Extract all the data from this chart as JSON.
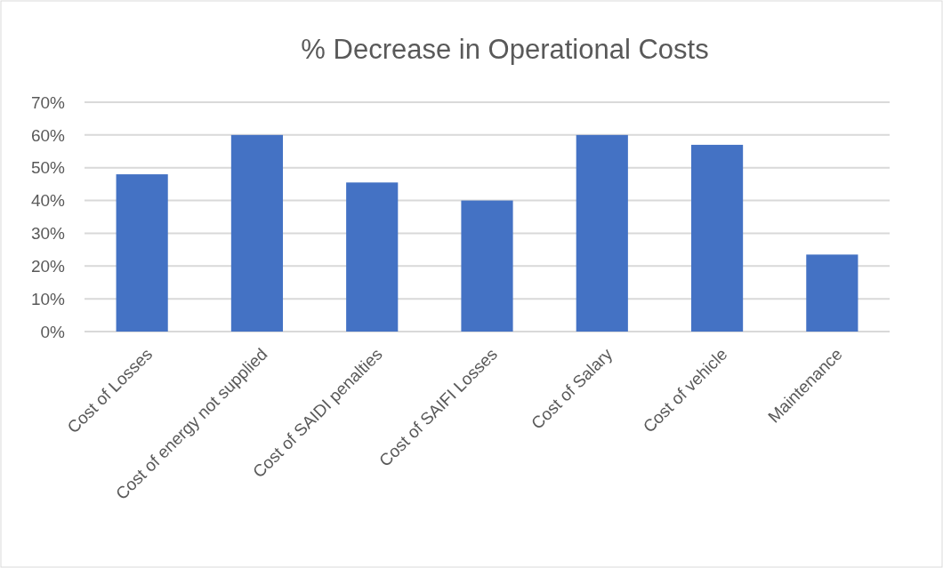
{
  "chart_data": {
    "type": "bar",
    "title": "% Decrease in Operational Costs",
    "categories": [
      "Cost of Losses",
      "Cost of energy not supplied",
      "Cost of SAIDI penalties",
      "Cost of SAIFI Losses",
      "Cost of Salary",
      "Cost of vehicle",
      "Maintenance"
    ],
    "values": [
      48,
      60,
      45.5,
      40,
      60,
      57,
      23.5
    ],
    "color": "#4472c4",
    "ylim": [
      0,
      70
    ],
    "yticks": [
      {
        "value": 0,
        "label": "0%"
      },
      {
        "value": 10,
        "label": "10%"
      },
      {
        "value": 20,
        "label": "20%"
      },
      {
        "value": 30,
        "label": "30%"
      },
      {
        "value": 40,
        "label": "40%"
      },
      {
        "value": 50,
        "label": "50%"
      },
      {
        "value": 60,
        "label": "60%"
      },
      {
        "value": 70,
        "label": "70%"
      }
    ],
    "grid": "y"
  }
}
